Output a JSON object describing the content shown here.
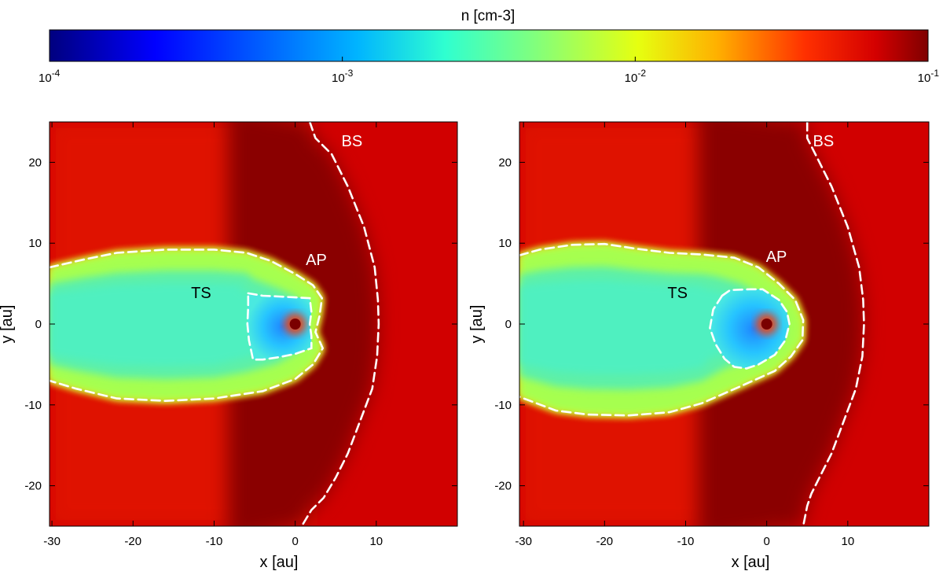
{
  "chart_data": {
    "type": "heatmap",
    "colorbar": {
      "title": "n [cm-3]",
      "scale": "log",
      "range": [
        0.0001,
        0.1
      ],
      "colormap": "jet",
      "ticks": [
        {
          "value": 0.0001,
          "base": "10",
          "exp": "-4"
        },
        {
          "value": 0.001,
          "base": "10",
          "exp": "-3"
        },
        {
          "value": 0.01,
          "base": "10",
          "exp": "-2"
        },
        {
          "value": 0.1,
          "base": "10",
          "exp": "-1"
        }
      ]
    },
    "panels": [
      {
        "id": "left",
        "xlabel": "x [au]",
        "ylabel": "y [au]",
        "xlim": [
          -30.3,
          20
        ],
        "ylim": [
          -25,
          25
        ],
        "xticks": [
          -30,
          -20,
          -10,
          0,
          10
        ],
        "yticks": [
          -20,
          -10,
          0,
          10,
          20
        ],
        "source_position": [
          0,
          0
        ],
        "labels": [
          {
            "text": "BS",
            "x": 7.0,
            "y": 22,
            "color": "#ffffff"
          },
          {
            "text": "AP",
            "x": 2.6,
            "y": 7.3,
            "color": "#ffffff"
          },
          {
            "text": "TS",
            "x": -11.6,
            "y": 3.2,
            "color": "#000000"
          }
        ],
        "boundaries": {
          "bow_shock": [
            [
              1.8,
              25
            ],
            [
              2.5,
              23
            ],
            [
              4.5,
              21
            ],
            [
              6.5,
              17
            ],
            [
              8.5,
              12
            ],
            [
              9.8,
              7
            ],
            [
              10.2,
              3
            ],
            [
              10.3,
              0
            ],
            [
              10.1,
              -4
            ],
            [
              9.5,
              -8
            ],
            [
              8.0,
              -12
            ],
            [
              6.5,
              -16
            ],
            [
              5.0,
              -19
            ],
            [
              3.5,
              -21.5
            ],
            [
              2.0,
              -23
            ],
            [
              0.8,
              -25
            ]
          ],
          "heliopause": [
            [
              -30.3,
              7
            ],
            [
              -26,
              8
            ],
            [
              -22,
              8.8
            ],
            [
              -16,
              9.2
            ],
            [
              -10,
              9.2
            ],
            [
              -6,
              8.8
            ],
            [
              -3,
              7.8
            ],
            [
              0,
              6.2
            ],
            [
              2.2,
              4.8
            ],
            [
              3.3,
              3.2
            ],
            [
              3.0,
              1
            ],
            [
              2.5,
              -1
            ],
            [
              3.4,
              -3
            ],
            [
              2.2,
              -5
            ],
            [
              0,
              -6.8
            ],
            [
              -4,
              -8.3
            ],
            [
              -10,
              -9.2
            ],
            [
              -16,
              -9.5
            ],
            [
              -22,
              -9.2
            ],
            [
              -27,
              -8
            ],
            [
              -30.3,
              -7
            ]
          ],
          "termination_shock": [
            [
              -5.8,
              3.8
            ],
            [
              -4,
              3.5
            ],
            [
              -2,
              3.4
            ],
            [
              0,
              3.3
            ],
            [
              1.8,
              3.2
            ],
            [
              2.0,
              1.5
            ],
            [
              1.8,
              0
            ],
            [
              2.0,
              -1.5
            ],
            [
              2.0,
              -3.0
            ],
            [
              0,
              -3.7
            ],
            [
              -2,
              -4.1
            ],
            [
              -4,
              -4.4
            ],
            [
              -5.2,
              -4.4
            ],
            [
              -5.7,
              -2
            ],
            [
              -5.9,
              0
            ],
            [
              -5.8,
              2
            ],
            [
              -5.8,
              3.8
            ]
          ]
        }
      },
      {
        "id": "right",
        "xlabel": "x [au]",
        "ylabel": "y [au]",
        "xlim": [
          -30.5,
          20
        ],
        "ylim": [
          -25,
          25
        ],
        "xticks": [
          -30,
          -20,
          -10,
          0,
          10
        ],
        "yticks": [
          -20,
          -10,
          0,
          10,
          20
        ],
        "source_position": [
          0,
          0
        ],
        "labels": [
          {
            "text": "BS",
            "x": 7.0,
            "y": 22,
            "color": "#ffffff"
          },
          {
            "text": "AP",
            "x": 1.2,
            "y": 7.7,
            "color": "#ffffff"
          },
          {
            "text": "TS",
            "x": -11.0,
            "y": 3.2,
            "color": "#000000"
          }
        ],
        "boundaries": {
          "bow_shock": [
            [
              5.0,
              25
            ],
            [
              5.0,
              23
            ],
            [
              6.0,
              21
            ],
            [
              8.0,
              17
            ],
            [
              10.0,
              12
            ],
            [
              11.4,
              7
            ],
            [
              11.9,
              3
            ],
            [
              12.0,
              0
            ],
            [
              11.8,
              -4
            ],
            [
              11.0,
              -8
            ],
            [
              9.5,
              -12
            ],
            [
              8.0,
              -16
            ],
            [
              6.5,
              -19
            ],
            [
              5.5,
              -21
            ],
            [
              5.0,
              -22.5
            ],
            [
              4.5,
              -25
            ]
          ],
          "heliopause": [
            [
              -30.5,
              8.5
            ],
            [
              -28,
              9.2
            ],
            [
              -24,
              9.8
            ],
            [
              -20,
              9.9
            ],
            [
              -16,
              9.3
            ],
            [
              -12,
              8.8
            ],
            [
              -8,
              8.6
            ],
            [
              -4,
              8.2
            ],
            [
              -1,
              7.0
            ],
            [
              1.5,
              5.0
            ],
            [
              3.5,
              3.0
            ],
            [
              4.5,
              0.5
            ],
            [
              4.4,
              -2
            ],
            [
              3.0,
              -4
            ],
            [
              1,
              -5.8
            ],
            [
              -3,
              -7.6
            ],
            [
              -8,
              -9.8
            ],
            [
              -12,
              -10.9
            ],
            [
              -17,
              -11.3
            ],
            [
              -22,
              -11.2
            ],
            [
              -26,
              -10.7
            ],
            [
              -30.5,
              -9
            ]
          ],
          "termination_shock": [
            [
              -5.5,
              3.5
            ],
            [
              -4.5,
              4.2
            ],
            [
              -2,
              4.3
            ],
            [
              -0.5,
              4.3
            ],
            [
              1.5,
              3.0
            ],
            [
              2.5,
              1.5
            ],
            [
              2.8,
              0
            ],
            [
              2.3,
              -2
            ],
            [
              1,
              -3.8
            ],
            [
              -1,
              -5.0
            ],
            [
              -2.5,
              -5.5
            ],
            [
              -4,
              -5.3
            ],
            [
              -5.2,
              -4.3
            ],
            [
              -6.3,
              -2.5
            ],
            [
              -7,
              -0.5
            ],
            [
              -6.6,
              1.8
            ],
            [
              -5.5,
              3.5
            ]
          ]
        }
      }
    ]
  }
}
